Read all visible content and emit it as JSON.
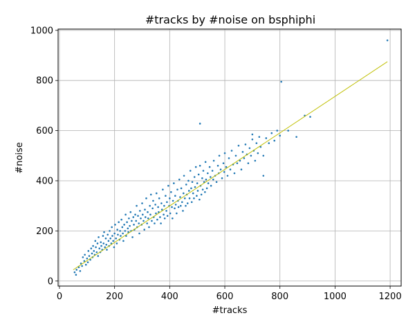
{
  "chart_data": {
    "type": "scatter",
    "title": "#tracks by #noise on bsphiphi",
    "xlabel": "#tracks",
    "ylabel": "#noise",
    "xlim": [
      -5,
      1240
    ],
    "ylim": [
      -20,
      1005
    ],
    "xticks": [
      "0",
      "200",
      "400",
      "600",
      "800",
      "1000",
      "1200"
    ],
    "yticks": [
      "0",
      "200",
      "400",
      "600",
      "800",
      "1000"
    ],
    "grid": true,
    "point_color": "#1f77b4",
    "fit_color": "#bfbf00",
    "series": [
      {
        "type": "scatter",
        "points": [
          [
            55,
            35
          ],
          [
            60,
            25
          ],
          [
            62,
            45
          ],
          [
            70,
            55
          ],
          [
            75,
            40
          ],
          [
            78,
            70
          ],
          [
            82,
            60
          ],
          [
            85,
            95
          ],
          [
            90,
            80
          ],
          [
            92,
            105
          ],
          [
            96,
            65
          ],
          [
            100,
            90
          ],
          [
            103,
            75
          ],
          [
            105,
            120
          ],
          [
            108,
            100
          ],
          [
            112,
            85
          ],
          [
            115,
            130
          ],
          [
            118,
            110
          ],
          [
            120,
            95
          ],
          [
            122,
            140
          ],
          [
            125,
            120
          ],
          [
            128,
            105
          ],
          [
            130,
            160
          ],
          [
            132,
            135
          ],
          [
            135,
            115
          ],
          [
            138,
            150
          ],
          [
            140,
            100
          ],
          [
            142,
            175
          ],
          [
            145,
            130
          ],
          [
            148,
            115
          ],
          [
            150,
            155
          ],
          [
            152,
            140
          ],
          [
            155,
            125
          ],
          [
            158,
            180
          ],
          [
            160,
            150
          ],
          [
            162,
            195
          ],
          [
            165,
            135
          ],
          [
            168,
            170
          ],
          [
            170,
            145
          ],
          [
            172,
            125
          ],
          [
            175,
            185
          ],
          [
            178,
            160
          ],
          [
            180,
            140
          ],
          [
            182,
            200
          ],
          [
            185,
            170
          ],
          [
            188,
            150
          ],
          [
            190,
            215
          ],
          [
            192,
            180
          ],
          [
            195,
            160
          ],
          [
            198,
            135
          ],
          [
            200,
            190
          ],
          [
            202,
            225
          ],
          [
            205,
            170
          ],
          [
            208,
            150
          ],
          [
            210,
            205
          ],
          [
            212,
            185
          ],
          [
            215,
            235
          ],
          [
            218,
            165
          ],
          [
            220,
            200
          ],
          [
            222,
            180
          ],
          [
            225,
            245
          ],
          [
            228,
            215
          ],
          [
            230,
            190
          ],
          [
            232,
            160
          ],
          [
            235,
            225
          ],
          [
            238,
            200
          ],
          [
            240,
            265
          ],
          [
            242,
            180
          ],
          [
            245,
            235
          ],
          [
            248,
            210
          ],
          [
            250,
            195
          ],
          [
            252,
            250
          ],
          [
            255,
            220
          ],
          [
            258,
            275
          ],
          [
            260,
            200
          ],
          [
            262,
            240
          ],
          [
            265,
            175
          ],
          [
            268,
            255
          ],
          [
            270,
            225
          ],
          [
            272,
            205
          ],
          [
            275,
            265
          ],
          [
            278,
            240
          ],
          [
            280,
            300
          ],
          [
            282,
            215
          ],
          [
            285,
            260
          ],
          [
            288,
            230
          ],
          [
            290,
            190
          ],
          [
            292,
            280
          ],
          [
            295,
            250
          ],
          [
            298,
            225
          ],
          [
            300,
            310
          ],
          [
            302,
            265
          ],
          [
            305,
            240
          ],
          [
            308,
            205
          ],
          [
            310,
            285
          ],
          [
            312,
            255
          ],
          [
            315,
            330
          ],
          [
            318,
            230
          ],
          [
            320,
            275
          ],
          [
            322,
            250
          ],
          [
            325,
            215
          ],
          [
            328,
            300
          ],
          [
            330,
            265
          ],
          [
            332,
            345
          ],
          [
            335,
            240
          ],
          [
            338,
            290
          ],
          [
            340,
            320
          ],
          [
            342,
            255
          ],
          [
            345,
            230
          ],
          [
            348,
            305
          ],
          [
            350,
            270
          ],
          [
            352,
            350
          ],
          [
            355,
            245
          ],
          [
            358,
            295
          ],
          [
            360,
            275
          ],
          [
            362,
            330
          ],
          [
            365,
            255
          ],
          [
            368,
            230
          ],
          [
            370,
            310
          ],
          [
            372,
            285
          ],
          [
            375,
            365
          ],
          [
            378,
            265
          ],
          [
            380,
            300
          ],
          [
            382,
            250
          ],
          [
            385,
            340
          ],
          [
            388,
            280
          ],
          [
            390,
            315
          ],
          [
            392,
            260
          ],
          [
            395,
            380
          ],
          [
            398,
            300
          ],
          [
            400,
            330
          ],
          [
            402,
            270
          ],
          [
            405,
            355
          ],
          [
            408,
            295
          ],
          [
            410,
            250
          ],
          [
            412,
            320
          ],
          [
            415,
            390
          ],
          [
            418,
            290
          ],
          [
            420,
            340
          ],
          [
            422,
            305
          ],
          [
            425,
            270
          ],
          [
            428,
            365
          ],
          [
            430,
            320
          ],
          [
            432,
            295
          ],
          [
            435,
            405
          ],
          [
            438,
            335
          ],
          [
            440,
            300
          ],
          [
            442,
            370
          ],
          [
            445,
            315
          ],
          [
            448,
            280
          ],
          [
            450,
            350
          ],
          [
            452,
            420
          ],
          [
            455,
            330
          ],
          [
            458,
            300
          ],
          [
            460,
            385
          ],
          [
            462,
            345
          ],
          [
            465,
            310
          ],
          [
            468,
            400
          ],
          [
            470,
            360
          ],
          [
            472,
            330
          ],
          [
            475,
            440
          ],
          [
            478,
            370
          ],
          [
            480,
            315
          ],
          [
            482,
            395
          ],
          [
            485,
            350
          ],
          [
            488,
            330
          ],
          [
            490,
            415
          ],
          [
            492,
            375
          ],
          [
            495,
            455
          ],
          [
            498,
            340
          ],
          [
            500,
            390
          ],
          [
            502,
            360
          ],
          [
            505,
            425
          ],
          [
            508,
            325
          ],
          [
            510,
            460
          ],
          [
            512,
            380
          ],
          [
            515,
            345
          ],
          [
            518,
            410
          ],
          [
            520,
            365
          ],
          [
            522,
            440
          ],
          [
            525,
            395
          ],
          [
            528,
            355
          ],
          [
            530,
            475
          ],
          [
            532,
            405
          ],
          [
            535,
            370
          ],
          [
            538,
            430
          ],
          [
            540,
            390
          ],
          [
            545,
            455
          ],
          [
            548,
            415
          ],
          [
            550,
            380
          ],
          [
            555,
            440
          ],
          [
            558,
            405
          ],
          [
            560,
            480
          ],
          [
            565,
            420
          ],
          [
            570,
            395
          ],
          [
            575,
            460
          ],
          [
            578,
            430
          ],
          [
            580,
            500
          ],
          [
            585,
            445
          ],
          [
            590,
            410
          ],
          [
            595,
            470
          ],
          [
            598,
            435
          ],
          [
            600,
            510
          ],
          [
            605,
            455
          ],
          [
            610,
            420
          ],
          [
            615,
            490
          ],
          [
            620,
            445
          ],
          [
            625,
            520
          ],
          [
            630,
            465
          ],
          [
            635,
            430
          ],
          [
            640,
            500
          ],
          [
            645,
            470
          ],
          [
            650,
            540
          ],
          [
            655,
            480
          ],
          [
            660,
            445
          ],
          [
            665,
            515
          ],
          [
            670,
            490
          ],
          [
            675,
            545
          ],
          [
            680,
            505
          ],
          [
            685,
            470
          ],
          [
            690,
            530
          ],
          [
            695,
            500
          ],
          [
            700,
            565
          ],
          [
            705,
            520
          ],
          [
            710,
            480
          ],
          [
            715,
            550
          ],
          [
            720,
            510
          ],
          [
            725,
            575
          ],
          [
            730,
            535
          ],
          [
            740,
            500
          ],
          [
            750,
            570
          ],
          [
            760,
            550
          ],
          [
            770,
            590
          ],
          [
            780,
            560
          ],
          [
            790,
            600
          ],
          [
            800,
            580
          ],
          [
            805,
            795
          ],
          [
            830,
            600
          ],
          [
            860,
            575
          ],
          [
            890,
            660
          ],
          [
            910,
            655
          ],
          [
            1190,
            960
          ],
          [
            510,
            628
          ],
          [
            700,
            585
          ],
          [
            740,
            420
          ]
        ]
      },
      {
        "type": "line",
        "points": [
          [
            50,
            45
          ],
          [
            1190,
            875
          ]
        ]
      }
    ]
  }
}
